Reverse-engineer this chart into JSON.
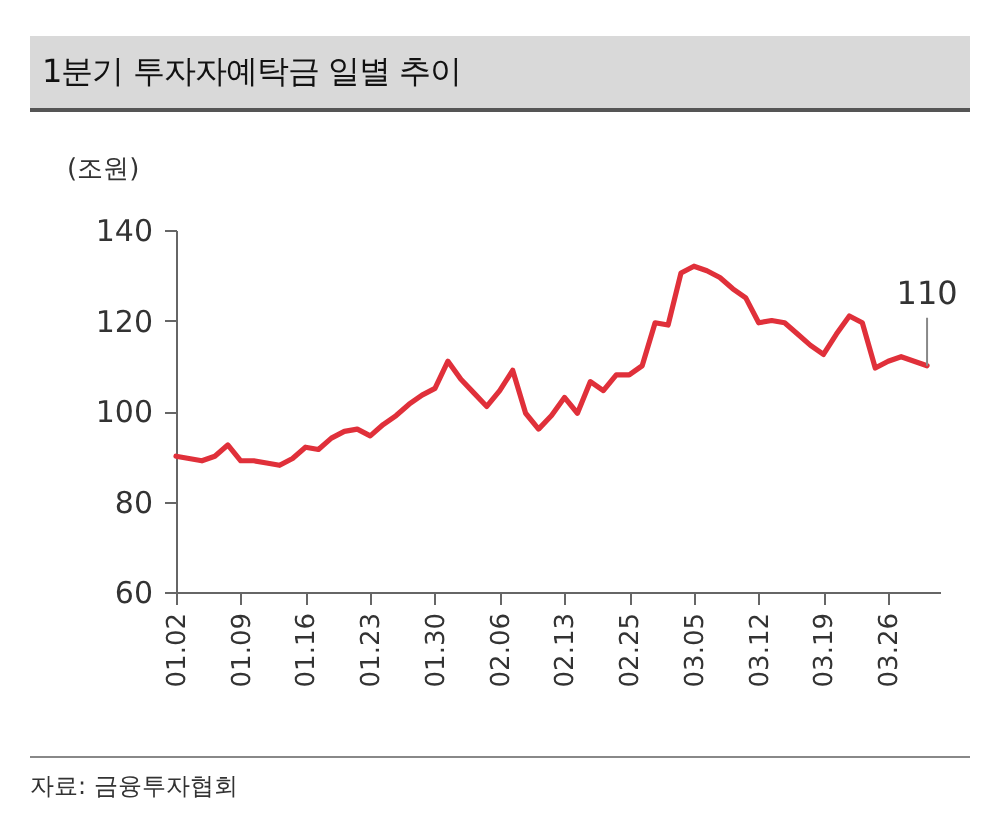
{
  "chart_data": {
    "type": "line",
    "title": "1분기 투자자예탁금 일별 추이",
    "ylabel": "(조원)",
    "categories": [
      "01.02",
      null,
      null,
      null,
      null,
      "01.09",
      null,
      null,
      null,
      null,
      "01.16",
      null,
      null,
      null,
      null,
      "01.23",
      null,
      null,
      null,
      null,
      "01.30",
      null,
      null,
      null,
      null,
      "02.06",
      null,
      null,
      null,
      null,
      "02.13",
      null,
      null,
      null,
      null,
      "02.25",
      null,
      null,
      null,
      null,
      "03.05",
      null,
      null,
      null,
      null,
      "03.12",
      null,
      null,
      null,
      null,
      "03.19",
      null,
      null,
      null,
      null,
      "03.26",
      null,
      null,
      null
    ],
    "series": [
      {
        "color": "#e0303a",
        "values": [
          90,
          89.5,
          89,
          90,
          92.5,
          89,
          89,
          88.5,
          88,
          89.5,
          92,
          91.5,
          94,
          95.5,
          96,
          94.5,
          97,
          99,
          101.5,
          103.5,
          105,
          111,
          107,
          104,
          101,
          104.5,
          109,
          99.5,
          96,
          99,
          103,
          99.5,
          106.5,
          104.5,
          108,
          108,
          110,
          119.5,
          119,
          130.5,
          132,
          131,
          129.5,
          127,
          125,
          119.5,
          120,
          119.5,
          117,
          114.5,
          112.5,
          117,
          121,
          119.5,
          109.5,
          111,
          112,
          111,
          110
        ]
      }
    ],
    "ylim": [
      60,
      140
    ],
    "yticks": [
      60,
      80,
      100,
      120,
      140
    ],
    "grid": false,
    "marker": "none",
    "line_style": "solid",
    "annotations": [
      {
        "text": "110",
        "y": 110
      },
      "자료: 금융투자협회"
    ]
  }
}
